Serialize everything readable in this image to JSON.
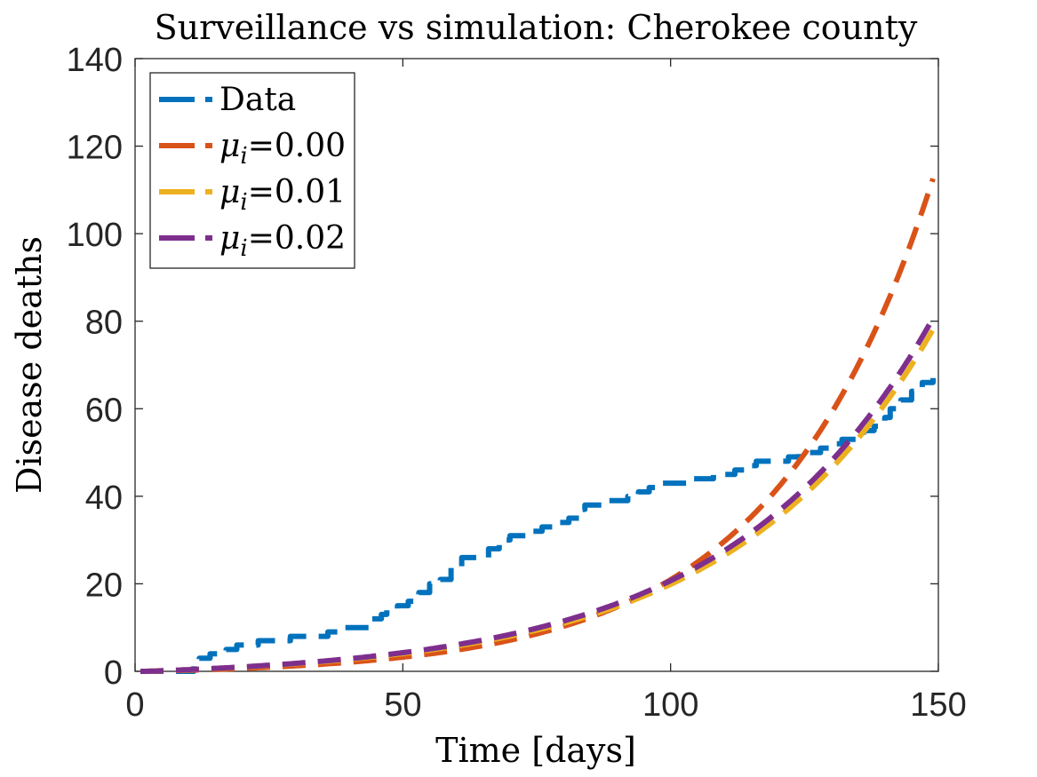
{
  "chart_data": {
    "type": "line",
    "title": "Surveillance vs simulation: Cherokee county",
    "xlabel": "Time [days]",
    "ylabel": "Disease deaths",
    "xlim": [
      0,
      150
    ],
    "ylim": [
      0,
      140
    ],
    "xticks": [
      0,
      50,
      100,
      150
    ],
    "xtick_labels": [
      "0",
      "50",
      "100",
      "150"
    ],
    "yticks": [
      0,
      20,
      40,
      60,
      80,
      100,
      120,
      140
    ],
    "ytick_labels": [
      "0",
      "20",
      "40",
      "60",
      "80",
      "100",
      "120",
      "140"
    ],
    "grid": false,
    "legend_position": "top-left",
    "series": [
      {
        "name": "Data",
        "label_base": "Data",
        "color": "#0072BD",
        "step": true,
        "x": [
          1,
          10,
          11,
          12,
          14,
          17,
          19,
          21,
          23,
          27,
          29,
          31,
          36,
          39,
          41,
          44,
          46,
          47,
          49,
          51,
          53,
          55,
          57,
          59,
          61,
          63,
          66,
          68,
          70,
          73,
          76,
          78,
          79,
          81,
          83,
          84,
          86,
          88,
          89,
          90,
          92,
          94,
          96,
          98,
          100,
          102,
          104,
          106,
          108,
          110,
          112,
          114,
          116,
          118,
          120,
          122,
          124,
          126,
          128,
          130,
          132,
          134,
          136,
          138,
          140,
          141,
          143,
          145,
          147,
          149
        ],
        "y": [
          0,
          0,
          2,
          3,
          4,
          5,
          6,
          6,
          7,
          7,
          8,
          8,
          9,
          10,
          10,
          12,
          13,
          14,
          15,
          16,
          18,
          20,
          21,
          24,
          26,
          26,
          28,
          30,
          31,
          32,
          33,
          33,
          34,
          35,
          37,
          38,
          38,
          39,
          39,
          39,
          40,
          41,
          42,
          43,
          43,
          43,
          44,
          44,
          45,
          45,
          46,
          47,
          48,
          48,
          48,
          49,
          50,
          50,
          51,
          52,
          53,
          53,
          55,
          56,
          58,
          60,
          62,
          64,
          66,
          67
        ]
      },
      {
        "name": "μi=0.00",
        "label_base": "μ",
        "label_sub": "i",
        "label_suffix": "=0.00",
        "color": "#D95319",
        "model": {
          "a": 0.8,
          "b": 0.0337,
          "x0": 2
        }
      },
      {
        "name": "μi=0.01",
        "label_base": "μ",
        "label_sub": "i",
        "label_suffix": "=0.01",
        "color": "#EDB120",
        "model": {
          "a": 1.55,
          "b": 0.0268,
          "x0": 2
        }
      },
      {
        "name": "μi=0.02",
        "label_base": "μ",
        "label_sub": "i",
        "label_suffix": "=0.02",
        "color": "#7E2F8E",
        "model": {
          "a": 1.65,
          "b": 0.0266,
          "x0": 2
        }
      }
    ]
  }
}
